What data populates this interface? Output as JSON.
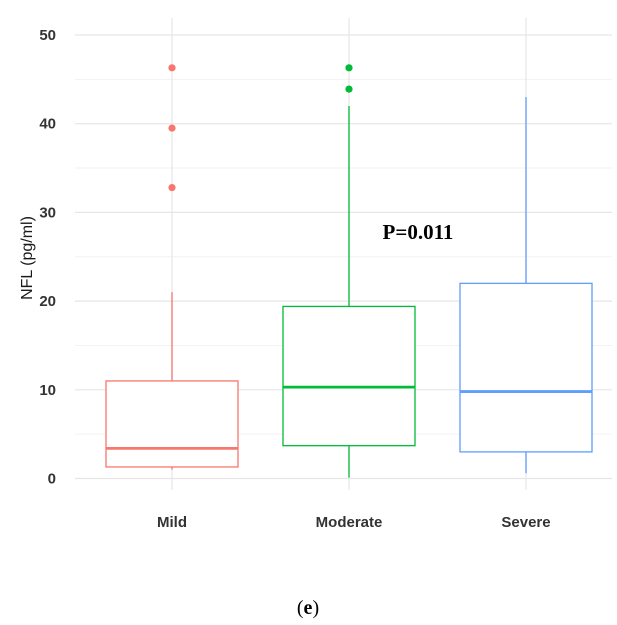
{
  "chart_data": {
    "type": "box",
    "title": "",
    "xlabel": "",
    "ylabel": "NFL (pg/ml)",
    "ylim": [
      -2,
      52
    ],
    "yticks": [
      0,
      10,
      20,
      30,
      40,
      50
    ],
    "grid": true,
    "legend": "none",
    "categories": [
      "Mild",
      "Moderate",
      "Severe"
    ],
    "boxes": [
      {
        "category": "Mild",
        "color": "#f8766d",
        "whisker_low": 1.0,
        "q1": 1.3,
        "median": 3.4,
        "q3": 11.0,
        "whisker_high": 21.0,
        "outliers": [
          32.8,
          39.5,
          46.3
        ]
      },
      {
        "category": "Moderate",
        "color": "#00ba38",
        "whisker_low": 0.1,
        "q1": 3.7,
        "median": 10.3,
        "q3": 19.4,
        "whisker_high": 42.0,
        "outliers": [
          43.9,
          46.3
        ]
      },
      {
        "category": "Severe",
        "color": "#619cff",
        "whisker_low": 0.6,
        "q1": 3.0,
        "median": 9.8,
        "q3": 22.0,
        "whisker_high": 43.0,
        "outliers": []
      }
    ],
    "annotation": {
      "text": "P=0.011",
      "x_category": "Severe",
      "y": 27
    }
  },
  "caption": {
    "open": "(",
    "letter": "e",
    "close": ")"
  }
}
